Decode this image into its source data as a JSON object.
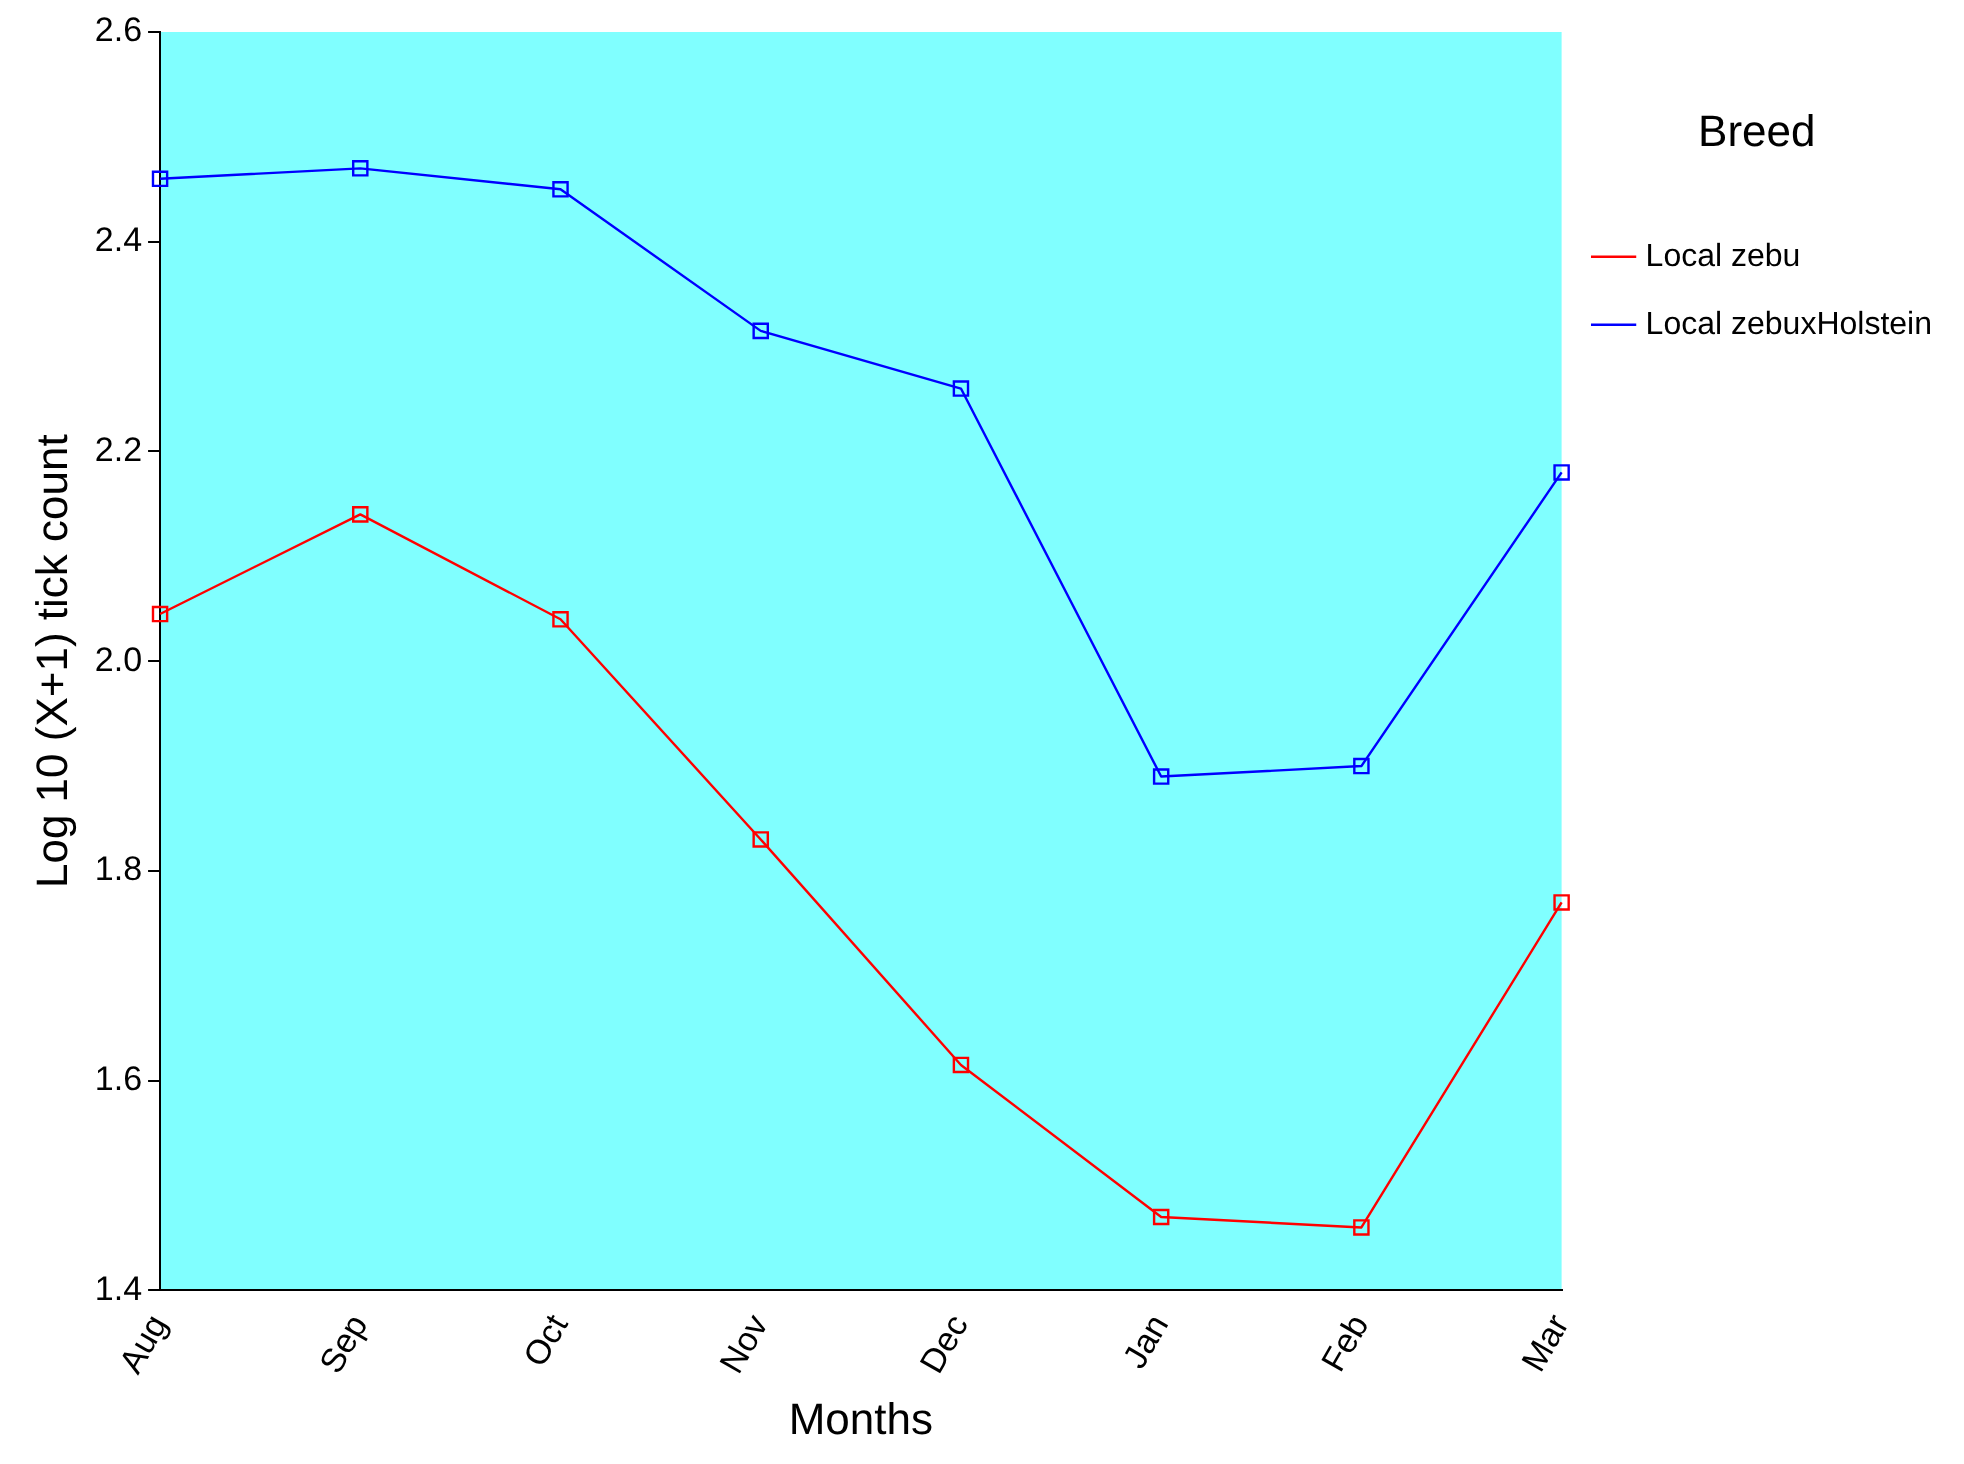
{
  "chart_data": {
    "type": "line",
    "xlabel": "Months",
    "ylabel": "Log 10 (X+1) tick count",
    "legend_title": "Breed",
    "legend": "right",
    "grid": false,
    "marker": "square",
    "line_style": "solid",
    "categories": [
      "Aug",
      "Sep",
      "Oct",
      "Nov",
      "Dec",
      "Jan",
      "Feb",
      "Mar"
    ],
    "ylim": [
      1.4,
      2.6
    ],
    "yticks": [
      {
        "value": 1.4,
        "label": "1.4"
      },
      {
        "value": 1.6,
        "label": "1.6"
      },
      {
        "value": 1.8,
        "label": "1.8"
      },
      {
        "value": 2.0,
        "label": "2.0"
      },
      {
        "value": 2.2,
        "label": "2.2"
      },
      {
        "value": 2.4,
        "label": "2.4"
      },
      {
        "value": 2.6,
        "label": "2.6"
      }
    ],
    "series": [
      {
        "name": "Local zebu",
        "color": "#ff0000",
        "values": [
          2.045,
          2.14,
          2.04,
          1.83,
          1.615,
          1.47,
          1.46,
          1.77
        ]
      },
      {
        "name": "Local zebuxHolstein",
        "color": "#0000ff",
        "values": [
          2.46,
          2.47,
          2.45,
          2.315,
          2.26,
          1.89,
          1.9,
          2.18
        ]
      }
    ]
  }
}
